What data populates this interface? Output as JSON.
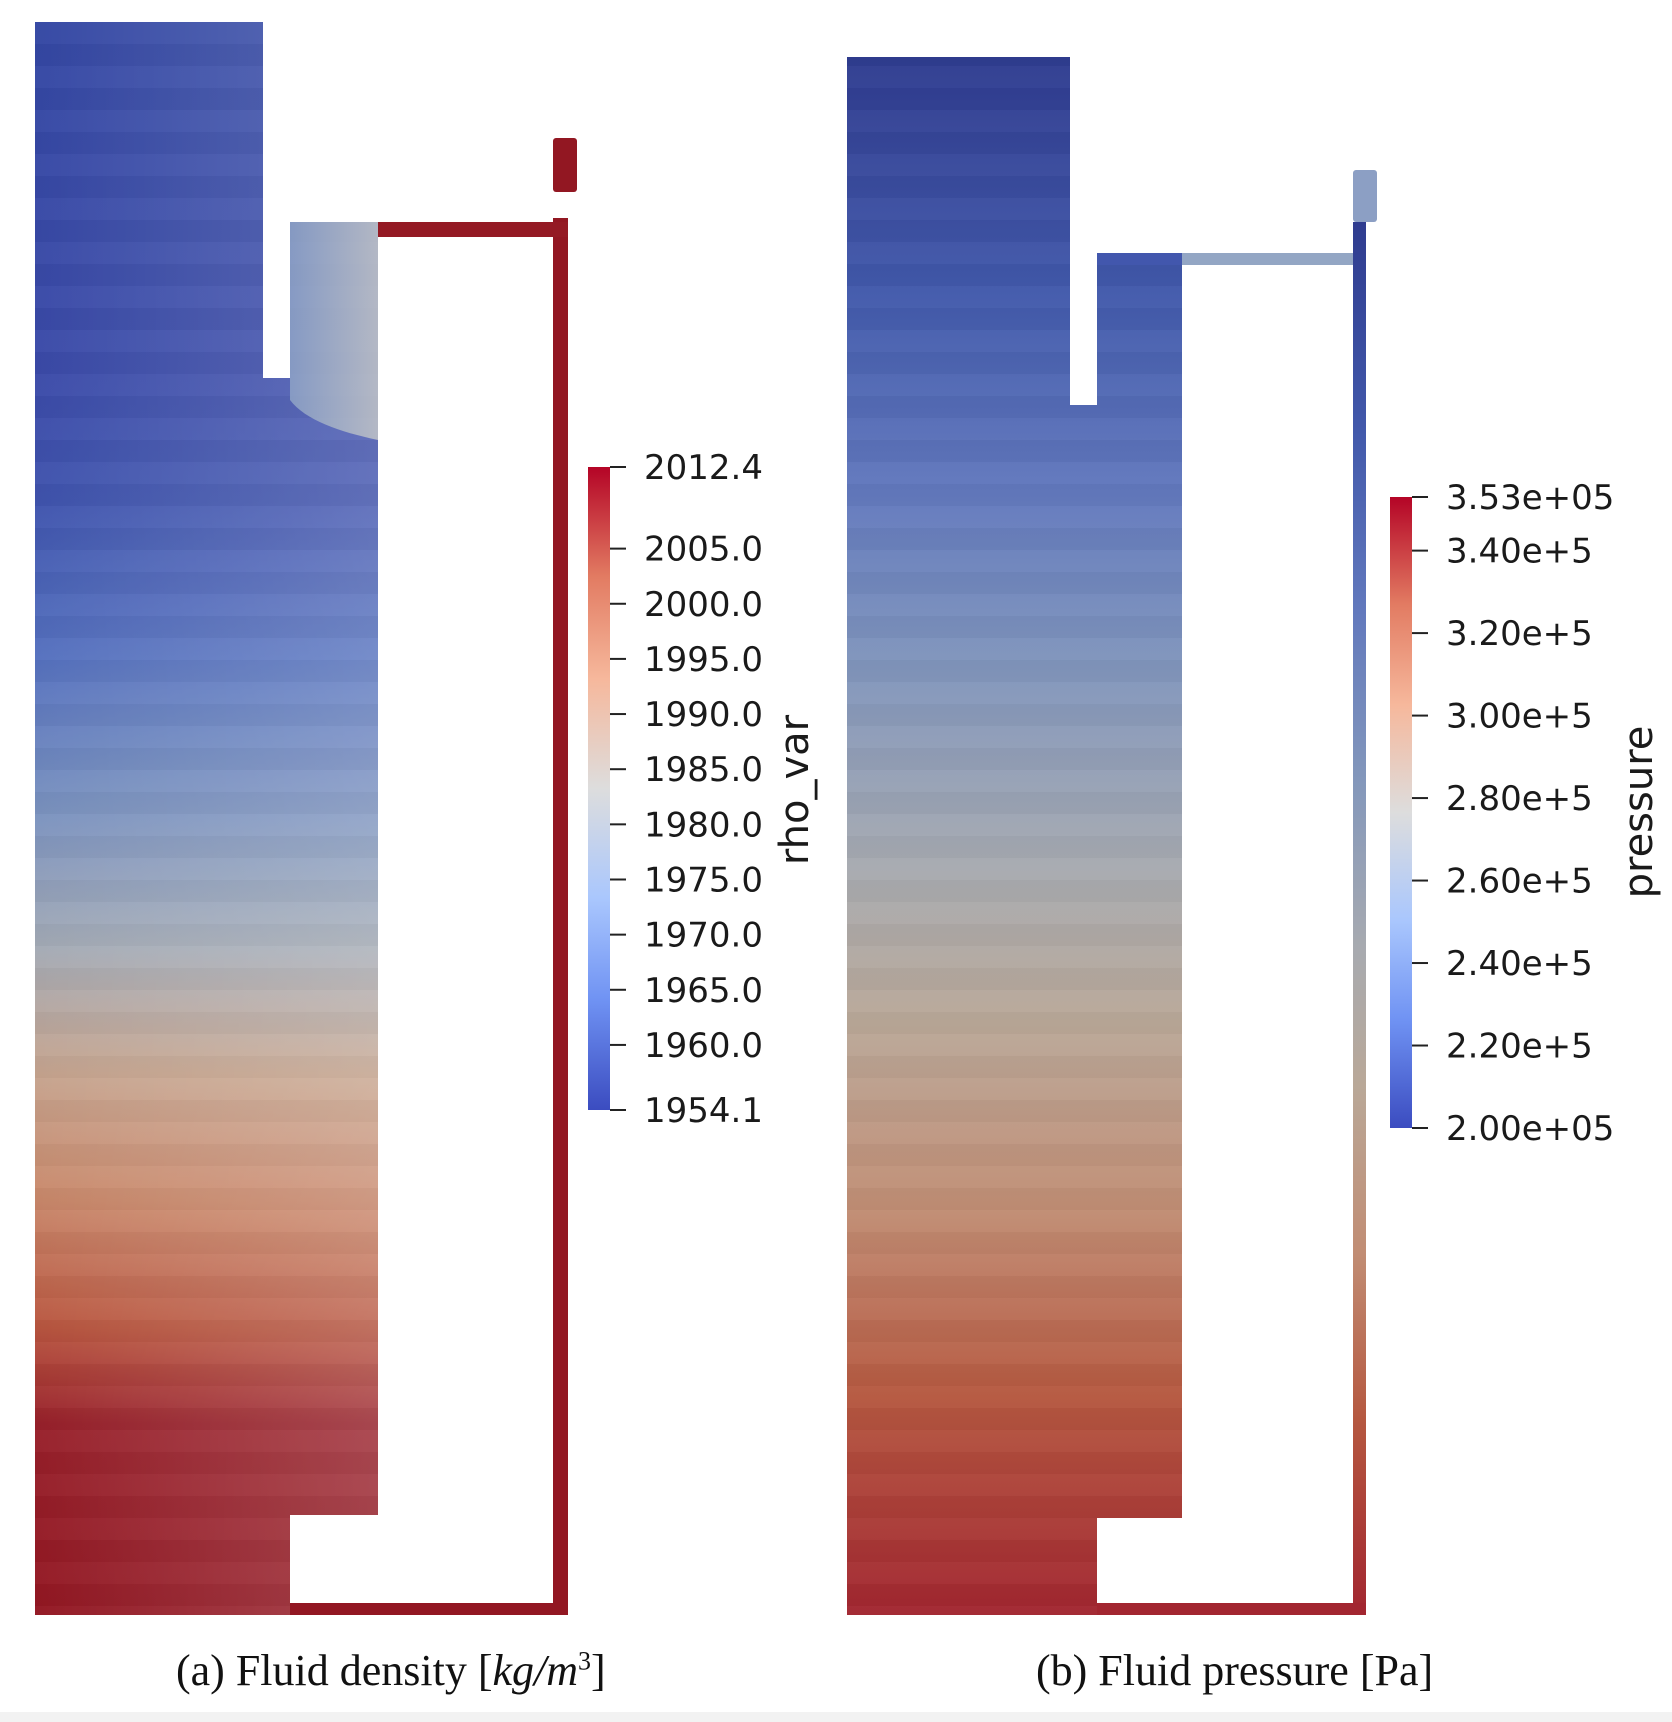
{
  "panel_a": {
    "colorbar": {
      "title": "rho_var",
      "ticks": [
        "2012.4",
        "2005.0",
        "2000.0",
        "1995.0",
        "1990.0",
        "1985.0",
        "1980.0",
        "1975.0",
        "1970.0",
        "1965.0",
        "1960.0",
        "1954.1"
      ],
      "min": 1954.1,
      "max": 2012.4
    },
    "caption": {
      "prefix": "(a) Fluid density [",
      "unit_kg": "kg",
      "unit_m": "/m",
      "unit_exp": "3",
      "suffix": "]"
    }
  },
  "panel_b": {
    "colorbar": {
      "title": "pressure",
      "ticks": [
        "3.53e+05",
        "3.40e+5",
        "3.20e+5",
        "3.00e+5",
        "2.80e+5",
        "2.60e+5",
        "2.40e+5",
        "2.20e+5",
        "2.00e+05"
      ],
      "min": 200000,
      "max": 353000
    },
    "caption": {
      "text": "(b) Fluid pressure [Pa]"
    }
  },
  "colormap": {
    "name": "cool-to-warm",
    "stops": [
      "#3b4cc0",
      "#6f92f3",
      "#aac7fd",
      "#dddddd",
      "#f6b89c",
      "#e27b62",
      "#b40426"
    ]
  }
}
